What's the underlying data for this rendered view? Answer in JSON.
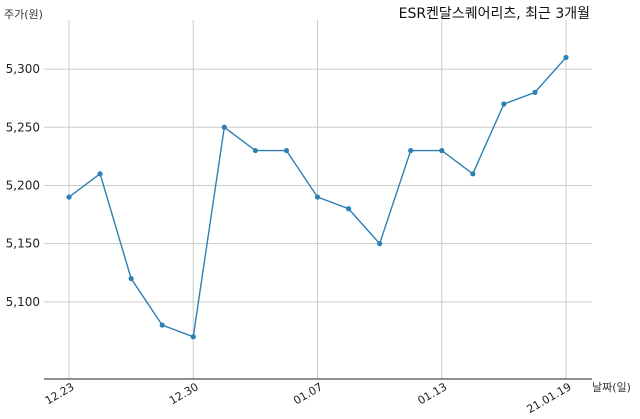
{
  "chart_data": {
    "type": "line",
    "title": "ESR켄달스퀘어리츠, 최근 3개월",
    "ylabel": "주가(원)",
    "xlabel": "날짜(일)",
    "ylim": [
      5050,
      5325
    ],
    "yticks": [
      5100,
      5150,
      5200,
      5250,
      5300
    ],
    "ytick_labels": [
      "5,100",
      "5,150",
      "5,200",
      "5,250",
      "5,300"
    ],
    "xtick_labels": [
      {
        "index": 0,
        "label": "12.23"
      },
      {
        "index": 4,
        "label": "12.30"
      },
      {
        "index": 8,
        "label": "01.07"
      },
      {
        "index": 12,
        "label": "01.13"
      },
      {
        "index": 16,
        "label": "21.01.19"
      }
    ],
    "grid": true,
    "series": [
      {
        "color": "#2e7fb4",
        "values": [
          5190,
          5210,
          5120,
          5080,
          5070,
          5250,
          5230,
          5230,
          5190,
          5180,
          5150,
          5230,
          5230,
          5210,
          5270,
          5280,
          5310
        ]
      }
    ]
  }
}
